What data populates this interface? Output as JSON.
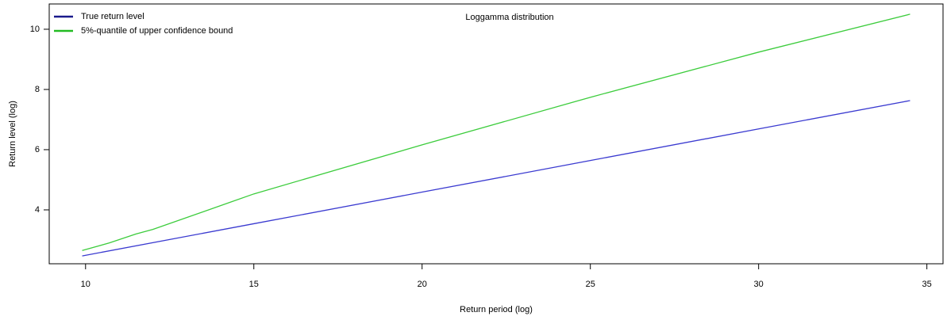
{
  "chart_data": {
    "type": "line",
    "title": "Loggamma distribution",
    "x_label": "Return period (log)",
    "y_label": "Return level (log)",
    "series": [
      {
        "name": "True return level",
        "color": "#3a3ad0",
        "legend_color": "#1a1a8c",
        "x": [
          9.9,
          15,
          20,
          25,
          30,
          34.5
        ],
        "values": [
          2.47,
          3.54,
          4.59,
          5.64,
          6.69,
          7.63
        ]
      },
      {
        "name": "5%-quantile of upper confidence bound",
        "color": "#3ccc3c",
        "legend_color": "#22bb22",
        "x": [
          9.9,
          10.7,
          11.5,
          12,
          15,
          20,
          25,
          30,
          34.5
        ],
        "values": [
          2.65,
          2.9,
          3.2,
          3.35,
          4.53,
          6.16,
          7.74,
          9.24,
          10.5
        ]
      }
    ],
    "xlim": [
      8.92,
      35.48
    ],
    "ylim": [
      2.21,
      10.84
    ],
    "xticks": [
      10,
      15,
      20,
      25,
      30,
      35
    ],
    "yticks": [
      4,
      6,
      8,
      10
    ],
    "legend": "top-left"
  }
}
